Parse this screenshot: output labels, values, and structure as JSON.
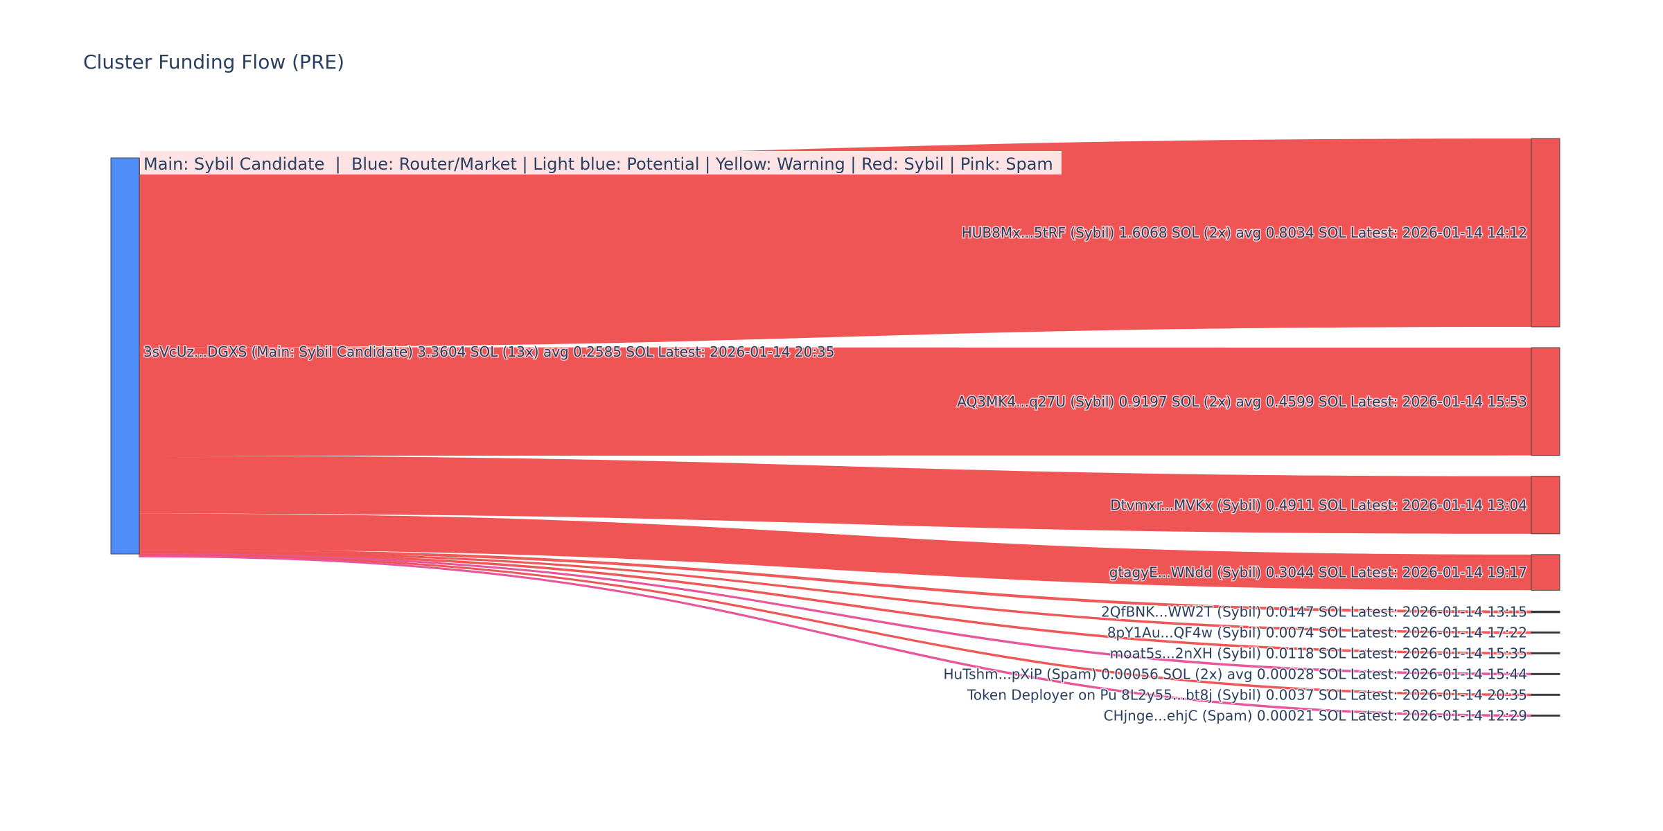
{
  "chart_data": {
    "type": "sankey",
    "title": "Cluster Funding Flow (PRE)",
    "legend_text": "Main: Sybil Candidate  |  Blue: Router/Market | Light blue: Potential | Yellow: Warning | Red: Sybil | Pink: Spam",
    "colors": {
      "source_node": "#4f8ef7",
      "sybil_link": "#ef5555",
      "spam_link": "#e8559a",
      "title_text": "#2a3f5f",
      "legend_bg": "#fde3e3"
    },
    "source": {
      "label": "3sVcUz...DGXS (Main: Sybil Candidate) 3.3604 SOL (13x) avg 0.2585 SOL Latest: 2026-01-14 20:35",
      "value": 3.3604
    },
    "targets": [
      {
        "label": "HUB8Mx...5tRF (Sybil) 1.6068 SOL (2x) avg 0.8034 SOL Latest: 2026-01-14 14:12",
        "value": 1.6068,
        "category": "Sybil"
      },
      {
        "label": "AQ3MK4...q27U (Sybil) 0.9197 SOL (2x) avg 0.4599 SOL Latest: 2026-01-14 15:53",
        "value": 0.9197,
        "category": "Sybil"
      },
      {
        "label": "Dtvmxr...MVKx (Sybil) 0.4911 SOL Latest: 2026-01-14 13:04",
        "value": 0.4911,
        "category": "Sybil"
      },
      {
        "label": "gtagyE...WNdd (Sybil) 0.3044 SOL Latest: 2026-01-14 19:17",
        "value": 0.3044,
        "category": "Sybil"
      },
      {
        "label": "2QfBNK...WW2T (Sybil) 0.0147 SOL Latest: 2026-01-14 13:15",
        "value": 0.0147,
        "category": "Sybil"
      },
      {
        "label": "8pY1Au...QF4w (Sybil) 0.0074 SOL Latest: 2026-01-14 17:22",
        "value": 0.0074,
        "category": "Sybil"
      },
      {
        "label": "moat5s...2nXH (Sybil) 0.0118 SOL Latest: 2026-01-14 15:35",
        "value": 0.0118,
        "category": "Sybil"
      },
      {
        "label": "HuTshm...pXiP (Spam) 0.00056 SOL (2x) avg 0.00028 SOL Latest: 2026-01-14 15:44",
        "value": 0.00056,
        "category": "Spam"
      },
      {
        "label": "Token Deployer on Pu 8L2y55...bt8j (Sybil) 0.0037 SOL Latest: 2026-01-14 20:35",
        "value": 0.0037,
        "category": "Sybil"
      },
      {
        "label": "CHjnge...ehjC (Spam) 0.00021 SOL Latest: 2026-01-14 12:29",
        "value": 0.00021,
        "category": "Spam"
      }
    ]
  }
}
